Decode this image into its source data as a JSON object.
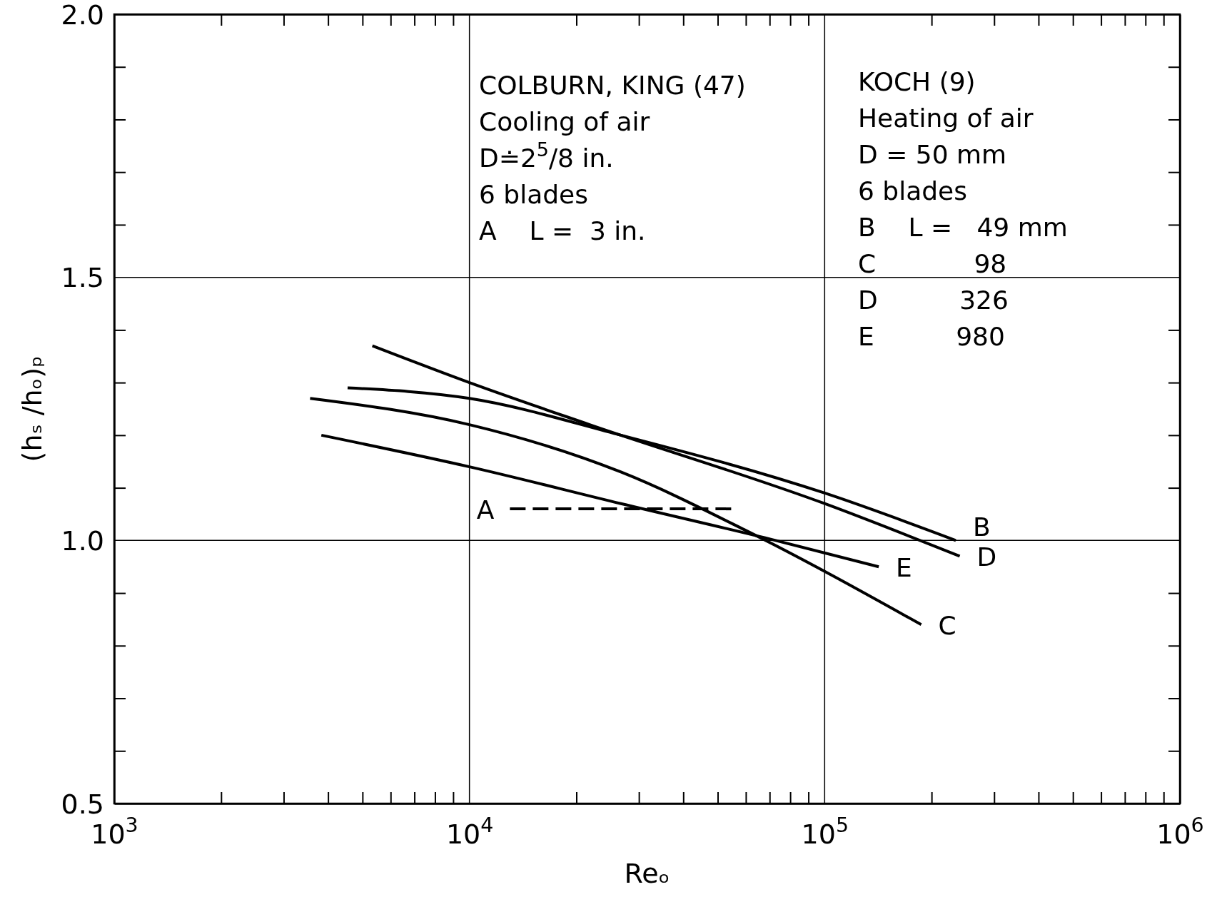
{
  "chart_data": {
    "type": "line",
    "xlabel": "Reₒ",
    "ylabel": "(hₛ /hₒ)ₚ",
    "log": "x",
    "xlim": [
      1000,
      1000000
    ],
    "xticks": [
      {
        "value": 1000,
        "label": "10$^{3}$"
      },
      {
        "value": 2000,
        "label": null
      },
      {
        "value": 3000,
        "label": null
      },
      {
        "value": 4000,
        "label": null
      },
      {
        "value": 5000,
        "label": null
      },
      {
        "value": 6000,
        "label": null
      },
      {
        "value": 7000,
        "label": null
      },
      {
        "value": 8000,
        "label": null
      },
      {
        "value": 9000,
        "label": null
      },
      {
        "value": 10000,
        "label": "10$^{4}$"
      },
      {
        "value": 20000,
        "label": null
      },
      {
        "value": 30000,
        "label": null
      },
      {
        "value": 40000,
        "label": null
      },
      {
        "value": 50000,
        "label": null
      },
      {
        "value": 60000,
        "label": null
      },
      {
        "value": 70000,
        "label": null
      },
      {
        "value": 80000,
        "label": null
      },
      {
        "value": 90000,
        "label": null
      },
      {
        "value": 100000,
        "label": "10$^{5}$"
      },
      {
        "value": 200000,
        "label": null
      },
      {
        "value": 300000,
        "label": null
      },
      {
        "value": 400000,
        "label": null
      },
      {
        "value": 500000,
        "label": null
      },
      {
        "value": 600000,
        "label": null
      },
      {
        "value": 700000,
        "label": null
      },
      {
        "value": 800000,
        "label": null
      },
      {
        "value": 900000,
        "label": null
      },
      {
        "value": 1000000,
        "label": "10$^{6}$"
      }
    ],
    "ylim": [
      0.5,
      2.0
    ],
    "yticks": [
      {
        "value": 0.5,
        "label": "0.5"
      },
      {
        "value": 0.6,
        "label": null
      },
      {
        "value": 0.7,
        "label": null
      },
      {
        "value": 0.8,
        "label": null
      },
      {
        "value": 0.9,
        "label": null
      },
      {
        "value": 1.0,
        "label": "1.0"
      },
      {
        "value": 1.1,
        "label": null
      },
      {
        "value": 1.2,
        "label": null
      },
      {
        "value": 1.3,
        "label": null
      },
      {
        "value": 1.4,
        "label": null
      },
      {
        "value": 1.5,
        "label": "1.5"
      },
      {
        "value": 1.6,
        "label": null
      },
      {
        "value": 1.7,
        "label": null
      },
      {
        "value": 1.8,
        "label": null
      },
      {
        "value": 1.9,
        "label": null
      },
      {
        "value": 2.0,
        "label": "2.0"
      }
    ],
    "ref_lines": [
      {
        "axis": "x",
        "value": 10000
      },
      {
        "axis": "x",
        "value": 100000
      },
      {
        "axis": "y",
        "value": 1.0
      },
      {
        "axis": "y",
        "value": 1.5
      }
    ],
    "series": [
      {
        "name": "A",
        "color": "#000000",
        "line_style": "dashed",
        "x": [
          13000,
          55000
        ],
        "values": [
          1.06,
          1.06
        ]
      },
      {
        "name": "B",
        "color": "#000000",
        "x": [
          4540,
          10000,
          26700,
          100000,
          234000
        ],
        "values": [
          1.29,
          1.27,
          1.2,
          1.09,
          1.0
        ]
      },
      {
        "name": "C",
        "color": "#000000",
        "x": [
          3560,
          10000,
          26700,
          59600,
          187000
        ],
        "values": [
          1.27,
          1.22,
          1.13,
          1.02,
          0.84
        ]
      },
      {
        "name": "D",
        "color": "#000000",
        "x": [
          5330,
          10000,
          21800,
          100000,
          240000
        ],
        "values": [
          1.37,
          1.3,
          1.22,
          1.07,
          0.97
        ]
      },
      {
        "name": "E",
        "color": "#000000",
        "x": [
          3830,
          10000,
          26700,
          72800,
          142000
        ],
        "values": [
          1.2,
          1.14,
          1.07,
          1.0,
          0.95
        ]
      }
    ],
    "annotations": [
      "COLBURN, KING (47)",
      "Cooling of air",
      "D≐2$^{5}$/8 in.",
      "6 blades",
      "A    L =  3 in.",
      "KOCH (9)",
      "Heating of air",
      "D = 50 mm",
      "6 blades",
      "B    L =   49 mm",
      "C            98",
      "D          326",
      "E          980"
    ]
  }
}
